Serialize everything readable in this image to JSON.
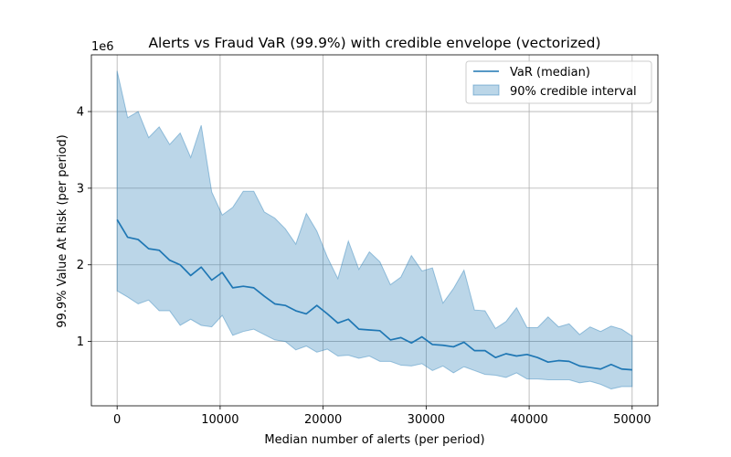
{
  "chart_data": {
    "type": "line",
    "title": "Alerts vs Fraud VaR (99.9%) with credible envelope (vectorized)",
    "xlabel": "Median number of alerts (per period)",
    "ylabel": "99.9% Value At Risk (per period)",
    "y_offset_label": "1e6",
    "xlim": [
      -2500,
      52500
    ],
    "ylim": [
      160000,
      4740000
    ],
    "xticks": [
      0,
      10000,
      20000,
      30000,
      40000,
      50000
    ],
    "yticks": [
      1,
      2,
      3,
      4
    ],
    "y_scale_factor": 1000000,
    "grid": true,
    "legend_placement": "top-right",
    "colors": {
      "line": "#1f77b4",
      "band": "#1f77b4"
    },
    "x": [
      0,
      1020,
      2041,
      3061,
      4082,
      5102,
      6122,
      7143,
      8163,
      9184,
      10204,
      11224,
      12245,
      13265,
      14286,
      15306,
      16327,
      17347,
      18367,
      19388,
      20408,
      21429,
      22449,
      23469,
      24490,
      25510,
      26531,
      27551,
      28571,
      29592,
      30612,
      31633,
      32653,
      33673,
      34694,
      35714,
      36735,
      37755,
      38776,
      39796,
      40816,
      41837,
      42857,
      43878,
      44898,
      45918,
      46939,
      47959,
      48980,
      50000
    ],
    "series": [
      {
        "name": "VaR (median)",
        "kind": "line",
        "values": [
          2590000,
          2360000,
          2330000,
          2210000,
          2190000,
          2060000,
          2000000,
          1860000,
          1970000,
          1800000,
          1900000,
          1700000,
          1720000,
          1700000,
          1590000,
          1490000,
          1470000,
          1400000,
          1360000,
          1470000,
          1360000,
          1240000,
          1290000,
          1160000,
          1150000,
          1140000,
          1020000,
          1050000,
          980000,
          1060000,
          960000,
          950000,
          930000,
          990000,
          880000,
          880000,
          790000,
          840000,
          810000,
          830000,
          790000,
          730000,
          750000,
          740000,
          680000,
          660000,
          640000,
          700000,
          640000,
          630000
        ]
      },
      {
        "name": "90% credible interval",
        "kind": "band",
        "lower": [
          1660000,
          1580000,
          1490000,
          1540000,
          1400000,
          1400000,
          1210000,
          1290000,
          1210000,
          1190000,
          1340000,
          1080000,
          1130000,
          1160000,
          1090000,
          1020000,
          1000000,
          890000,
          940000,
          860000,
          900000,
          810000,
          820000,
          780000,
          810000,
          740000,
          740000,
          690000,
          680000,
          710000,
          620000,
          680000,
          590000,
          670000,
          620000,
          570000,
          560000,
          530000,
          590000,
          510000,
          510000,
          500000,
          500000,
          500000,
          460000,
          480000,
          440000,
          380000,
          410000,
          410000
        ],
        "upper": [
          4530000,
          3920000,
          4000000,
          3660000,
          3800000,
          3570000,
          3720000,
          3400000,
          3820000,
          2950000,
          2650000,
          2750000,
          2960000,
          2960000,
          2690000,
          2610000,
          2470000,
          2270000,
          2670000,
          2440000,
          2100000,
          1820000,
          2310000,
          1940000,
          2170000,
          2040000,
          1740000,
          1840000,
          2120000,
          1920000,
          1960000,
          1500000,
          1690000,
          1930000,
          1410000,
          1400000,
          1170000,
          1260000,
          1440000,
          1180000,
          1180000,
          1320000,
          1190000,
          1230000,
          1090000,
          1190000,
          1130000,
          1200000,
          1160000,
          1070000
        ]
      }
    ]
  }
}
